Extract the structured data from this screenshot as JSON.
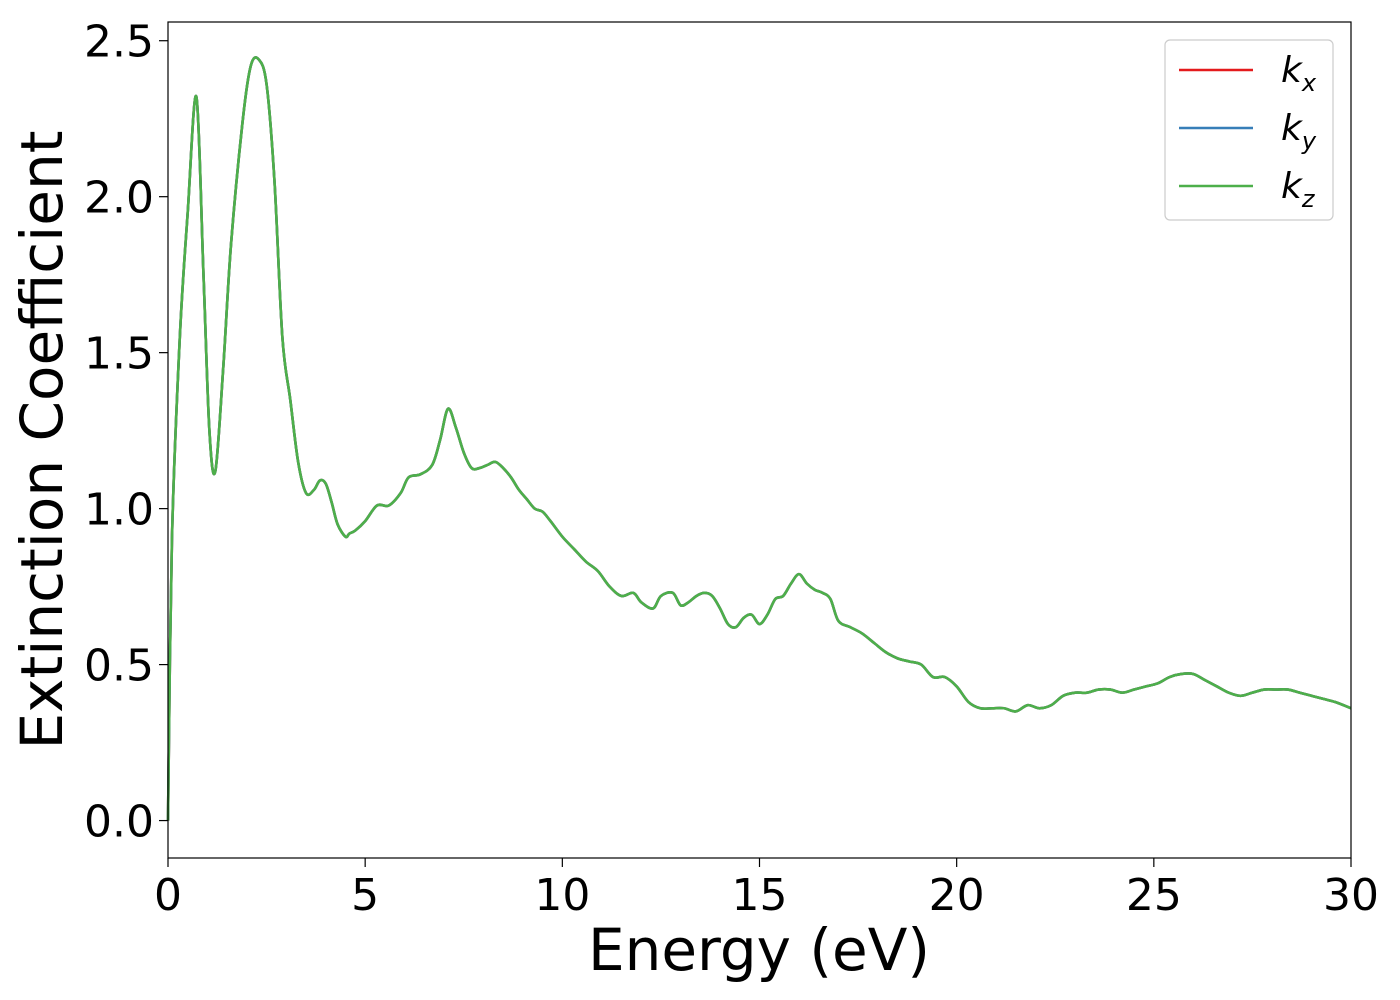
{
  "chart_data": {
    "type": "line",
    "xlabel": "Energy (eV)",
    "ylabel": "Extinction Coefficient",
    "xlim": [
      0,
      30
    ],
    "ylim": [
      -0.12,
      2.56
    ],
    "xticks": [
      0,
      5,
      10,
      15,
      20,
      25,
      30
    ],
    "yticks": [
      0.0,
      0.5,
      1.0,
      1.5,
      2.0,
      2.5
    ],
    "xtick_labels": [
      "0",
      "5",
      "10",
      "15",
      "20",
      "25",
      "30"
    ],
    "ytick_labels": [
      "0.0",
      "0.5",
      "1.0",
      "1.5",
      "2.0",
      "2.5"
    ],
    "grid": false,
    "legend_position": "top-right",
    "shared_x": [
      0.0,
      0.1,
      0.3,
      0.5,
      0.72,
      0.9,
      1.05,
      1.2,
      1.4,
      1.6,
      1.9,
      2.1,
      2.3,
      2.5,
      2.7,
      2.9,
      3.1,
      3.3,
      3.5,
      3.7,
      3.85,
      4.0,
      4.15,
      4.3,
      4.5,
      4.6,
      4.75,
      5.0,
      5.3,
      5.6,
      5.9,
      6.1,
      6.4,
      6.7,
      6.9,
      7.1,
      7.3,
      7.5,
      7.7,
      7.9,
      8.1,
      8.3,
      8.5,
      8.7,
      8.9,
      9.1,
      9.3,
      9.5,
      9.7,
      10.0,
      10.3,
      10.6,
      10.9,
      11.2,
      11.5,
      11.8,
      12.0,
      12.3,
      12.5,
      12.8,
      13.0,
      13.2,
      13.4,
      13.6,
      13.8,
      14.0,
      14.2,
      14.4,
      14.6,
      14.8,
      15.0,
      15.2,
      15.4,
      15.6,
      15.8,
      16.0,
      16.2,
      16.4,
      16.6,
      16.8,
      17.0,
      17.3,
      17.6,
      17.9,
      18.2,
      18.5,
      18.8,
      19.1,
      19.4,
      19.7,
      20.0,
      20.3,
      20.6,
      20.9,
      21.2,
      21.5,
      21.8,
      22.1,
      22.4,
      22.7,
      23.0,
      23.3,
      23.6,
      23.9,
      24.2,
      24.5,
      24.8,
      25.1,
      25.4,
      25.7,
      26.0,
      26.3,
      26.6,
      26.9,
      27.2,
      27.5,
      27.8,
      28.1,
      28.4,
      28.7,
      29.0,
      29.3,
      29.6,
      30.0
    ],
    "series": [
      {
        "name": "k_x",
        "label_main": "k",
        "label_sub": "x",
        "color": "#e41a1c",
        "values": [
          0.0,
          0.9,
          1.55,
          1.95,
          2.32,
          1.75,
          1.25,
          1.12,
          1.45,
          1.85,
          2.25,
          2.42,
          2.44,
          2.36,
          2.05,
          1.55,
          1.35,
          1.15,
          1.05,
          1.06,
          1.09,
          1.08,
          1.02,
          0.95,
          0.91,
          0.92,
          0.93,
          0.96,
          1.01,
          1.01,
          1.05,
          1.1,
          1.11,
          1.14,
          1.22,
          1.32,
          1.26,
          1.18,
          1.13,
          1.13,
          1.14,
          1.15,
          1.13,
          1.1,
          1.06,
          1.03,
          1.0,
          0.99,
          0.96,
          0.91,
          0.87,
          0.83,
          0.8,
          0.75,
          0.72,
          0.73,
          0.7,
          0.68,
          0.72,
          0.73,
          0.69,
          0.7,
          0.72,
          0.73,
          0.72,
          0.68,
          0.63,
          0.62,
          0.65,
          0.66,
          0.63,
          0.66,
          0.71,
          0.72,
          0.76,
          0.79,
          0.76,
          0.74,
          0.73,
          0.71,
          0.64,
          0.62,
          0.6,
          0.57,
          0.54,
          0.52,
          0.51,
          0.5,
          0.46,
          0.46,
          0.43,
          0.38,
          0.36,
          0.36,
          0.36,
          0.35,
          0.37,
          0.36,
          0.37,
          0.4,
          0.41,
          0.41,
          0.42,
          0.42,
          0.41,
          0.42,
          0.43,
          0.44,
          0.46,
          0.47,
          0.47,
          0.45,
          0.43,
          0.41,
          0.4,
          0.41,
          0.42,
          0.42,
          0.42,
          0.41,
          0.4,
          0.39,
          0.38,
          0.36
        ]
      },
      {
        "name": "k_y",
        "label_main": "k",
        "label_sub": "y",
        "color": "#377eb8",
        "values": [
          0.0,
          0.9,
          1.55,
          1.95,
          2.32,
          1.75,
          1.25,
          1.12,
          1.45,
          1.85,
          2.25,
          2.42,
          2.44,
          2.36,
          2.05,
          1.55,
          1.35,
          1.15,
          1.05,
          1.06,
          1.09,
          1.08,
          1.02,
          0.95,
          0.91,
          0.92,
          0.93,
          0.96,
          1.01,
          1.01,
          1.05,
          1.1,
          1.11,
          1.14,
          1.22,
          1.32,
          1.26,
          1.18,
          1.13,
          1.13,
          1.14,
          1.15,
          1.13,
          1.1,
          1.06,
          1.03,
          1.0,
          0.99,
          0.96,
          0.91,
          0.87,
          0.83,
          0.8,
          0.75,
          0.72,
          0.73,
          0.7,
          0.68,
          0.72,
          0.73,
          0.69,
          0.7,
          0.72,
          0.73,
          0.72,
          0.68,
          0.63,
          0.62,
          0.65,
          0.66,
          0.63,
          0.66,
          0.71,
          0.72,
          0.76,
          0.79,
          0.76,
          0.74,
          0.73,
          0.71,
          0.64,
          0.62,
          0.6,
          0.57,
          0.54,
          0.52,
          0.51,
          0.5,
          0.46,
          0.46,
          0.43,
          0.38,
          0.36,
          0.36,
          0.36,
          0.35,
          0.37,
          0.36,
          0.37,
          0.4,
          0.41,
          0.41,
          0.42,
          0.42,
          0.41,
          0.42,
          0.43,
          0.44,
          0.46,
          0.47,
          0.47,
          0.45,
          0.43,
          0.41,
          0.4,
          0.41,
          0.42,
          0.42,
          0.42,
          0.41,
          0.4,
          0.39,
          0.38,
          0.36
        ]
      },
      {
        "name": "k_z",
        "label_main": "k",
        "label_sub": "z",
        "color": "#4daf4a",
        "values": [
          0.0,
          0.9,
          1.55,
          1.95,
          2.32,
          1.75,
          1.25,
          1.12,
          1.45,
          1.85,
          2.25,
          2.42,
          2.44,
          2.36,
          2.05,
          1.55,
          1.35,
          1.15,
          1.05,
          1.06,
          1.09,
          1.08,
          1.02,
          0.95,
          0.91,
          0.92,
          0.93,
          0.96,
          1.01,
          1.01,
          1.05,
          1.1,
          1.11,
          1.14,
          1.22,
          1.32,
          1.26,
          1.18,
          1.13,
          1.13,
          1.14,
          1.15,
          1.13,
          1.1,
          1.06,
          1.03,
          1.0,
          0.99,
          0.96,
          0.91,
          0.87,
          0.83,
          0.8,
          0.75,
          0.72,
          0.73,
          0.7,
          0.68,
          0.72,
          0.73,
          0.69,
          0.7,
          0.72,
          0.73,
          0.72,
          0.68,
          0.63,
          0.62,
          0.65,
          0.66,
          0.63,
          0.66,
          0.71,
          0.72,
          0.76,
          0.79,
          0.76,
          0.74,
          0.73,
          0.71,
          0.64,
          0.62,
          0.6,
          0.57,
          0.54,
          0.52,
          0.51,
          0.5,
          0.46,
          0.46,
          0.43,
          0.38,
          0.36,
          0.36,
          0.36,
          0.35,
          0.37,
          0.36,
          0.37,
          0.4,
          0.41,
          0.41,
          0.42,
          0.42,
          0.41,
          0.42,
          0.43,
          0.44,
          0.46,
          0.47,
          0.47,
          0.45,
          0.43,
          0.41,
          0.4,
          0.41,
          0.42,
          0.42,
          0.42,
          0.41,
          0.4,
          0.39,
          0.38,
          0.36
        ]
      }
    ]
  }
}
